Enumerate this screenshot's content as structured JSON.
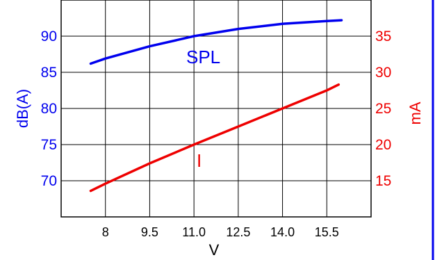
{
  "chart_data": {
    "type": "line",
    "xlabel": "V",
    "x_ticks": [
      "8",
      "9.5",
      "11.0",
      "12.5",
      "14.0",
      "15.5"
    ],
    "xlim": [
      6.5,
      17.0
    ],
    "left_axis": {
      "label": "dB(A)",
      "ticks": [
        "70",
        "75",
        "80",
        "85",
        "90"
      ],
      "ylim": [
        65,
        95
      ],
      "color": "#0000ee"
    },
    "right_axis": {
      "label": "mA",
      "ticks": [
        "15",
        "20",
        "25",
        "30",
        "35"
      ],
      "ylim": [
        10,
        40
      ],
      "color": "#ee0000"
    },
    "grid": true,
    "series": [
      {
        "name": "SPL",
        "axis": "left",
        "color": "#0000ee",
        "x": [
          7.5,
          8.0,
          9.5,
          11.0,
          12.5,
          14.0,
          15.5,
          16.0
        ],
        "y": [
          86.2,
          86.9,
          88.6,
          90.0,
          91.0,
          91.7,
          92.1,
          92.2
        ]
      },
      {
        "name": "I",
        "axis": "right",
        "color": "#ee0000",
        "x": [
          7.5,
          8.0,
          9.5,
          11.0,
          12.5,
          14.0,
          15.5,
          15.9
        ],
        "y": [
          13.6,
          14.6,
          17.4,
          20.0,
          22.5,
          25.0,
          27.5,
          28.3
        ]
      }
    ]
  }
}
